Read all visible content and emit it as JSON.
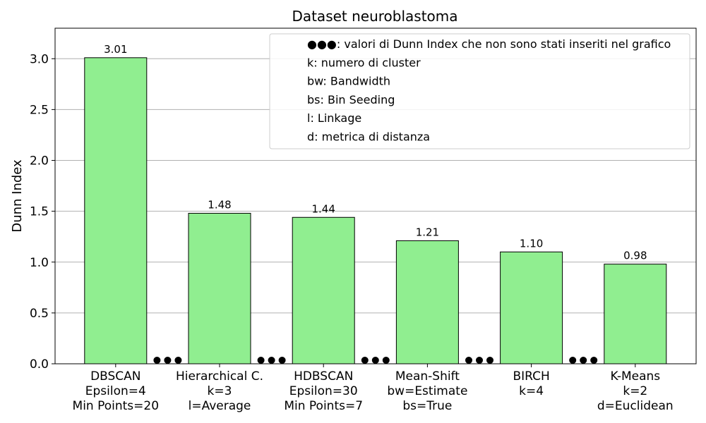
{
  "chart_data": {
    "type": "bar",
    "title": "Dataset neuroblastoma",
    "ylabel": "Dunn Index",
    "xlabel": "",
    "ylim": [
      0,
      3.3
    ],
    "yticks": [
      "0.0",
      "0.5",
      "1.0",
      "1.5",
      "2.0",
      "2.5",
      "3.0"
    ],
    "grid": true,
    "bar_color": "#90EE90",
    "bar_edge_color": "#000000",
    "categories": [
      [
        "DBSCAN",
        "Epsilon=4",
        "Min Points=20"
      ],
      [
        "Hierarchical C.",
        "k=3",
        "l=Average"
      ],
      [
        "HDBSCAN",
        "Epsilon=30",
        "Min Points=7"
      ],
      [
        "Mean-Shift",
        "bw=Estimate",
        "bs=True"
      ],
      [
        "BIRCH",
        "k=4"
      ],
      [
        "K-Means",
        "k=2",
        "d=Euclidean"
      ]
    ],
    "values": [
      3.01,
      1.48,
      1.44,
      1.21,
      1.1,
      0.98
    ],
    "value_labels": [
      "3.01",
      "1.48",
      "1.44",
      "1.21",
      "1.10",
      "0.98"
    ],
    "gap_marker": "●●●",
    "legend": {
      "position": "top-right",
      "entries": [
        "●●●: valori di Dunn Index che non sono stati inseriti nel grafico",
        "k: numero di cluster",
        "bw: Bandwidth",
        "bs: Bin Seeding",
        "l: Linkage",
        "d: metrica di distanza"
      ]
    }
  }
}
